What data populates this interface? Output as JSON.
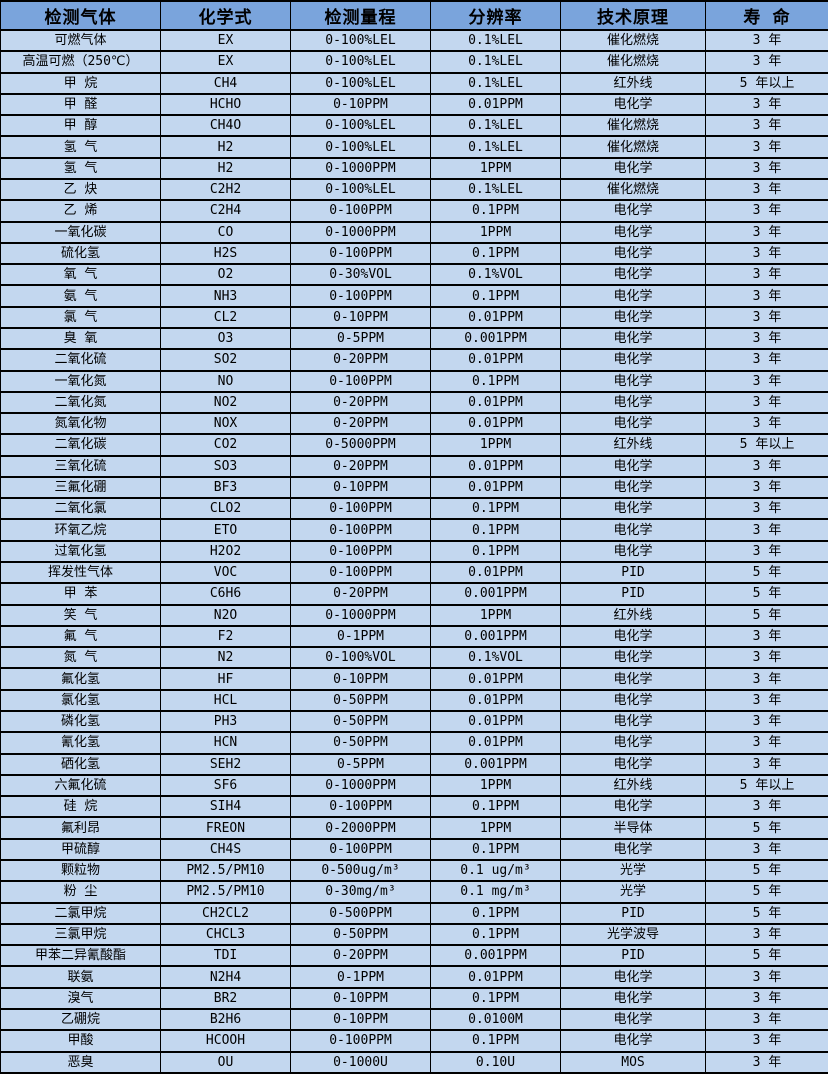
{
  "table": {
    "colors": {
      "header_bg": "#7aa4dc",
      "row_bg": "#c3d7ef",
      "border": "#000000",
      "text": "#000000"
    },
    "columns": [
      "检测气体",
      "化学式",
      "检测量程",
      "分辨率",
      "技术原理",
      "寿 命"
    ],
    "rows": [
      [
        "可燃气体",
        "EX",
        "0-100%LEL",
        "0.1%LEL",
        "催化燃烧",
        "3 年"
      ],
      [
        "高温可燃（250℃）",
        "EX",
        "0-100%LEL",
        "0.1%LEL",
        "催化燃烧",
        "3 年"
      ],
      [
        "甲 烷",
        "CH4",
        "0-100%LEL",
        "0.1%LEL",
        "红外线",
        "5 年以上"
      ],
      [
        "甲 醛",
        "HCHO",
        "0-10PPM",
        "0.01PPM",
        "电化学",
        "3 年"
      ],
      [
        "甲 醇",
        "CH4O",
        "0-100%LEL",
        "0.1%LEL",
        "催化燃烧",
        "3 年"
      ],
      [
        "氢 气",
        "H2",
        "0-100%LEL",
        "0.1%LEL",
        "催化燃烧",
        "3 年"
      ],
      [
        "氢 气",
        "H2",
        "0-1000PPM",
        "1PPM",
        "电化学",
        "3 年"
      ],
      [
        "乙 炔",
        "C2H2",
        "0-100%LEL",
        "0.1%LEL",
        "催化燃烧",
        "3 年"
      ],
      [
        "乙 烯",
        "C2H4",
        "0-100PPM",
        "0.1PPM",
        "电化学",
        "3 年"
      ],
      [
        "一氧化碳",
        "CO",
        "0-1000PPM",
        "1PPM",
        "电化学",
        "3 年"
      ],
      [
        "硫化氢",
        "H2S",
        "0-100PPM",
        "0.1PPM",
        "电化学",
        "3 年"
      ],
      [
        "氧 气",
        "O2",
        "0-30%VOL",
        "0.1%VOL",
        "电化学",
        "3 年"
      ],
      [
        "氨 气",
        "NH3",
        "0-100PPM",
        "0.1PPM",
        "电化学",
        "3 年"
      ],
      [
        "氯 气",
        "CL2",
        "0-10PPM",
        "0.01PPM",
        "电化学",
        "3 年"
      ],
      [
        "臭 氧",
        "O3",
        "0-5PPM",
        "0.001PPM",
        "电化学",
        "3 年"
      ],
      [
        "二氧化硫",
        "SO2",
        "0-20PPM",
        "0.01PPM",
        "电化学",
        "3 年"
      ],
      [
        "一氧化氮",
        "NO",
        "0-100PPM",
        "0.1PPM",
        "电化学",
        "3 年"
      ],
      [
        "二氧化氮",
        "NO2",
        "0-20PPM",
        "0.01PPM",
        "电化学",
        "3 年"
      ],
      [
        "氮氧化物",
        "NOX",
        "0-20PPM",
        "0.01PPM",
        "电化学",
        "3 年"
      ],
      [
        "二氧化碳",
        "CO2",
        "0-5000PPM",
        "1PPM",
        "红外线",
        "5 年以上"
      ],
      [
        "三氧化硫",
        "SO3",
        "0-20PPM",
        "0.01PPM",
        "电化学",
        "3 年"
      ],
      [
        "三氟化硼",
        "BF3",
        "0-10PPM",
        "0.01PPM",
        "电化学",
        "3 年"
      ],
      [
        "二氧化氯",
        "CLO2",
        "0-100PPM",
        "0.1PPM",
        "电化学",
        "3 年"
      ],
      [
        "环氧乙烷",
        "ETO",
        "0-100PPM",
        "0.1PPM",
        "电化学",
        "3 年"
      ],
      [
        "过氧化氢",
        "H2O2",
        "0-100PPM",
        "0.1PPM",
        "电化学",
        "3 年"
      ],
      [
        "挥发性气体",
        "VOC",
        "0-100PPM",
        "0.01PPM",
        "PID",
        "5 年"
      ],
      [
        "甲 苯",
        "C6H6",
        "0-20PPM",
        "0.001PPM",
        "PID",
        "5 年"
      ],
      [
        "笑 气",
        "N2O",
        "0-1000PPM",
        "1PPM",
        "红外线",
        "5 年"
      ],
      [
        "氟 气",
        "F2",
        "0-1PPM",
        "0.001PPM",
        "电化学",
        "3 年"
      ],
      [
        "氮 气",
        "N2",
        "0-100%VOL",
        "0.1%VOL",
        "电化学",
        "3 年"
      ],
      [
        "氟化氢",
        "HF",
        "0-10PPM",
        "0.01PPM",
        "电化学",
        "3 年"
      ],
      [
        "氯化氢",
        "HCL",
        "0-50PPM",
        "0.01PPM",
        "电化学",
        "3 年"
      ],
      [
        "磷化氢",
        "PH3",
        "0-50PPM",
        "0.01PPM",
        "电化学",
        "3 年"
      ],
      [
        "氰化氢",
        "HCN",
        "0-50PPM",
        "0.01PPM",
        "电化学",
        "3 年"
      ],
      [
        "硒化氢",
        "SEH2",
        "0-5PPM",
        "0.001PPM",
        "电化学",
        "3 年"
      ],
      [
        "六氟化硫",
        "SF6",
        "0-1000PPM",
        "1PPM",
        "红外线",
        "5 年以上"
      ],
      [
        "硅 烷",
        "SIH4",
        "0-100PPM",
        "0.1PPM",
        "电化学",
        "3 年"
      ],
      [
        "氟利昂",
        "FREON",
        "0-2000PPM",
        "1PPM",
        "半导体",
        "5 年"
      ],
      [
        "甲硫醇",
        "CH4S",
        "0-100PPM",
        "0.1PPM",
        "电化学",
        "3 年"
      ],
      [
        "颗粒物",
        "PM2.5/PM10",
        "0-500ug/m³",
        "0.1 ug/m³",
        "光学",
        "5 年"
      ],
      [
        "粉 尘",
        "PM2.5/PM10",
        "0-30mg/m³",
        "0.1 mg/m³",
        "光学",
        "5 年"
      ],
      [
        "二氯甲烷",
        "CH2CL2",
        "0-500PPM",
        "0.1PPM",
        "PID",
        "5 年"
      ],
      [
        "三氯甲烷",
        "CHCL3",
        "0-50PPM",
        "0.1PPM",
        "光学波导",
        "3 年"
      ],
      [
        "甲苯二异氰酸酯",
        "TDI",
        "0-20PPM",
        "0.001PPM",
        "PID",
        "5 年"
      ],
      [
        "联氨",
        "N2H4",
        "0-1PPM",
        "0.01PPM",
        "电化学",
        "3 年"
      ],
      [
        "溴气",
        "BR2",
        "0-10PPM",
        "0.1PPM",
        "电化学",
        "3 年"
      ],
      [
        "乙硼烷",
        "B2H6",
        "0-10PPM",
        "0.0100M",
        "电化学",
        "3 年"
      ],
      [
        "甲酸",
        "HCOOH",
        "0-100PPM",
        "0.1PPM",
        "电化学",
        "3 年"
      ],
      [
        "恶臭",
        "OU",
        "0-1000U",
        "0.10U",
        "MOS",
        "3 年"
      ]
    ]
  }
}
